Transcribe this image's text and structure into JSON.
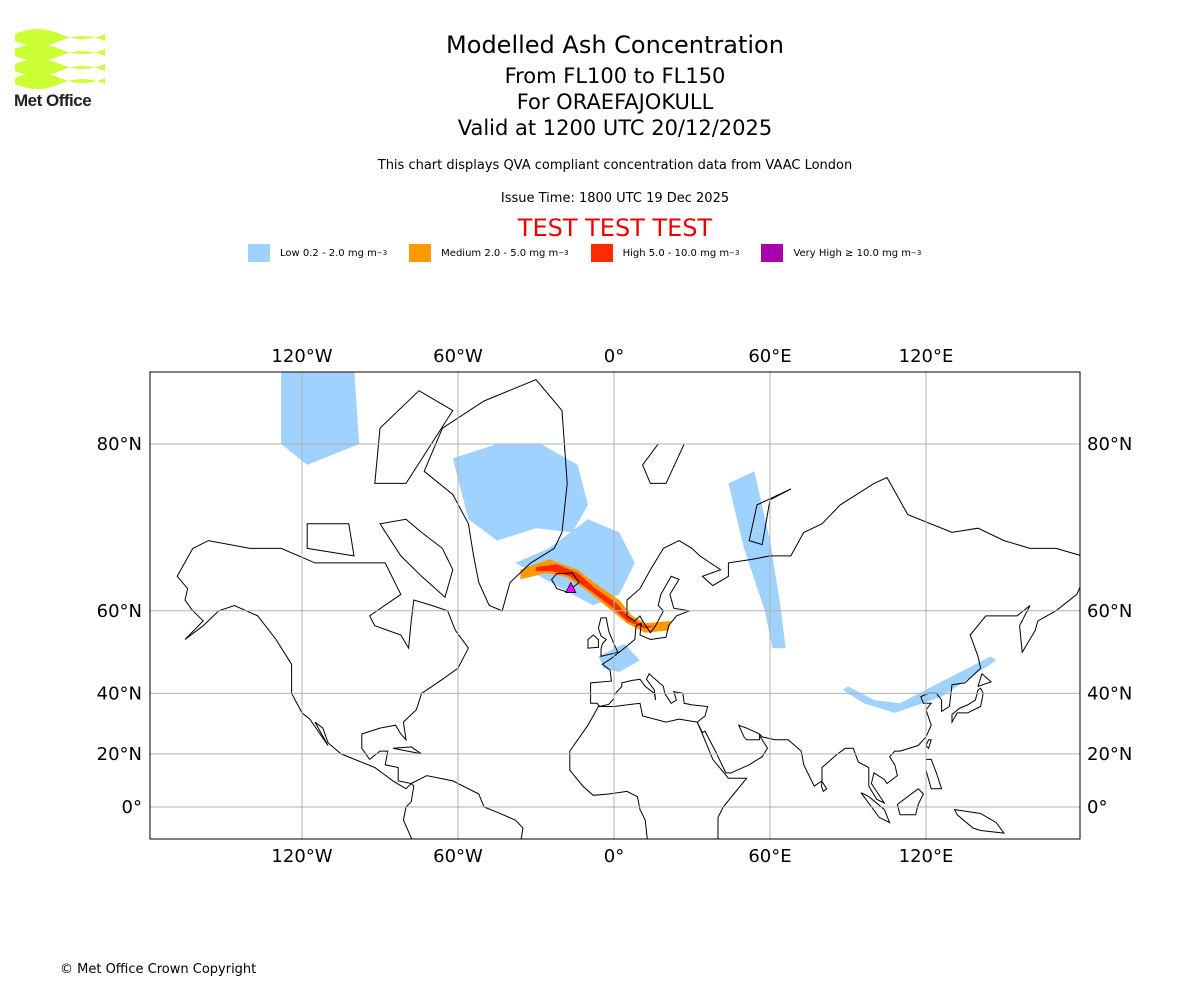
{
  "logo": {
    "text": "Met Office",
    "color": "#ccff33"
  },
  "header": {
    "title": "Modelled Ash Concentration",
    "levels": "From FL100 to FL150",
    "volcano": "For ORAEFAJOKULL",
    "valid": "Valid at 1200 UTC 20/12/2025",
    "note": "This chart displays QVA compliant concentration data from VAAC London",
    "issue": "Issue Time: 1800 UTC 19 Dec 2025",
    "test_banner": "TEST TEST TEST"
  },
  "legend": [
    {
      "label": "Low 0.2 - 2.0 mg m",
      "exp": "−3",
      "color": "#a0d2ff"
    },
    {
      "label": "Medium 2.0 - 5.0 mg m",
      "exp": "−3",
      "color": "#ff9900"
    },
    {
      "label": "High 5.0 - 10.0 mg m",
      "exp": "−3",
      "color": "#ff2a00"
    },
    {
      "label": "Very High ≥ 10.0 mg m",
      "exp": "−3",
      "color": "#aa00aa"
    }
  ],
  "chart_data": {
    "type": "map",
    "projection": "mercator",
    "lon_range": [
      -180,
      180
    ],
    "lat_range": [
      -12,
      84.5
    ],
    "grid": true,
    "lon_ticks": [
      {
        "v": -120,
        "label": "120°W"
      },
      {
        "v": -60,
        "label": "60°W"
      },
      {
        "v": 0,
        "label": "0°"
      },
      {
        "v": 60,
        "label": "60°E"
      },
      {
        "v": 120,
        "label": "120°E"
      }
    ],
    "lat_ticks": [
      {
        "v": 0,
        "label": "0°"
      },
      {
        "v": 20,
        "label": "20°N"
      },
      {
        "v": 40,
        "label": "40°N"
      },
      {
        "v": 60,
        "label": "60°N"
      },
      {
        "v": 80,
        "label": "80°N"
      }
    ],
    "vent": {
      "name": "ORAEFAJOKULL",
      "lon": -16.6,
      "lat": 64.0
    },
    "ash_regions": [
      {
        "level": "Low",
        "polygon": [
          [
            -62,
            79
          ],
          [
            -45,
            80
          ],
          [
            -28,
            80
          ],
          [
            -14,
            78.5
          ],
          [
            -10,
            75
          ],
          [
            -16,
            72
          ],
          [
            -30,
            72.5
          ],
          [
            -45,
            71
          ],
          [
            -56,
            73.5
          ],
          [
            -62,
            79
          ]
        ]
      },
      {
        "level": "Low",
        "polygon": [
          [
            -38,
            68
          ],
          [
            -25,
            70
          ],
          [
            -10,
            73.5
          ],
          [
            2,
            72
          ],
          [
            8,
            68
          ],
          [
            2,
            63
          ],
          [
            -8,
            61
          ],
          [
            -20,
            64
          ],
          [
            -38,
            68
          ]
        ]
      },
      {
        "level": "Low",
        "polygon": [
          [
            -128,
            84
          ],
          [
            -100,
            84
          ],
          [
            -98,
            80
          ],
          [
            -118,
            78.5
          ],
          [
            -128,
            80
          ]
        ]
      },
      {
        "level": "Low",
        "polygon": [
          [
            44,
            77
          ],
          [
            54,
            78
          ],
          [
            60,
            71
          ],
          [
            64,
            61
          ],
          [
            66,
            52
          ],
          [
            61,
            52
          ],
          [
            58,
            60
          ],
          [
            50,
            70
          ],
          [
            44,
            77
          ]
        ]
      },
      {
        "level": "Low",
        "polygon": [
          [
            90,
            42
          ],
          [
            100,
            38
          ],
          [
            110,
            37
          ],
          [
            125,
            43
          ],
          [
            145,
            50
          ],
          [
            147,
            49
          ],
          [
            126,
            39
          ],
          [
            108,
            34
          ],
          [
            96,
            37
          ],
          [
            88,
            41
          ]
        ]
      },
      {
        "level": "Low",
        "polygon": [
          [
            -6,
            50
          ],
          [
            4,
            53
          ],
          [
            10,
            49
          ],
          [
            2,
            46
          ],
          [
            -4,
            47
          ]
        ]
      },
      {
        "level": "Medium",
        "polygon": [
          [
            -36,
            67
          ],
          [
            -25,
            68.5
          ],
          [
            -14,
            67
          ],
          [
            -6,
            64.5
          ],
          [
            2,
            62
          ],
          [
            7,
            59
          ],
          [
            12,
            57.5
          ],
          [
            22,
            58
          ],
          [
            21,
            56
          ],
          [
            12,
            55.5
          ],
          [
            5,
            57.5
          ],
          [
            -2,
            60.5
          ],
          [
            -10,
            63.5
          ],
          [
            -18,
            65.8
          ],
          [
            -26,
            66.5
          ],
          [
            -36,
            65.5
          ]
        ]
      },
      {
        "level": "High",
        "polygon": [
          [
            -30,
            67.4
          ],
          [
            -22,
            67.8
          ],
          [
            -14,
            66.5
          ],
          [
            -7,
            64
          ],
          [
            1,
            61.4
          ],
          [
            6,
            58.6
          ],
          [
            12,
            57
          ],
          [
            16,
            57
          ],
          [
            12,
            56.4
          ],
          [
            5,
            58
          ],
          [
            -1,
            60.8
          ],
          [
            -9,
            63.6
          ],
          [
            -17,
            66
          ],
          [
            -24,
            66.8
          ],
          [
            -30,
            66.8
          ]
        ]
      }
    ]
  },
  "footer": {
    "copyright": "© Met Office Crown Copyright"
  }
}
